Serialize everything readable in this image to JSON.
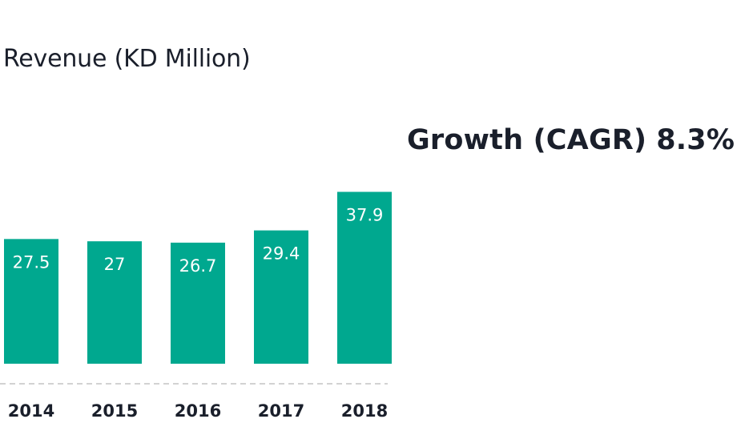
{
  "chart_data": {
    "type": "bar",
    "title": "Revenue (KD Million)",
    "categories": [
      "2014",
      "2015",
      "2016",
      "2017",
      "2018"
    ],
    "values": [
      27.5,
      27,
      26.7,
      29.4,
      37.9
    ],
    "value_labels": [
      "27.5",
      "27",
      "26.7",
      "29.4",
      "37.9"
    ],
    "xlabel": "",
    "ylabel": "",
    "grid": false,
    "bar_color": "#00a88f",
    "baseline_color": "#c4c4c4"
  },
  "growth": {
    "label": "Growth (CAGR)",
    "value": "8.3%"
  }
}
